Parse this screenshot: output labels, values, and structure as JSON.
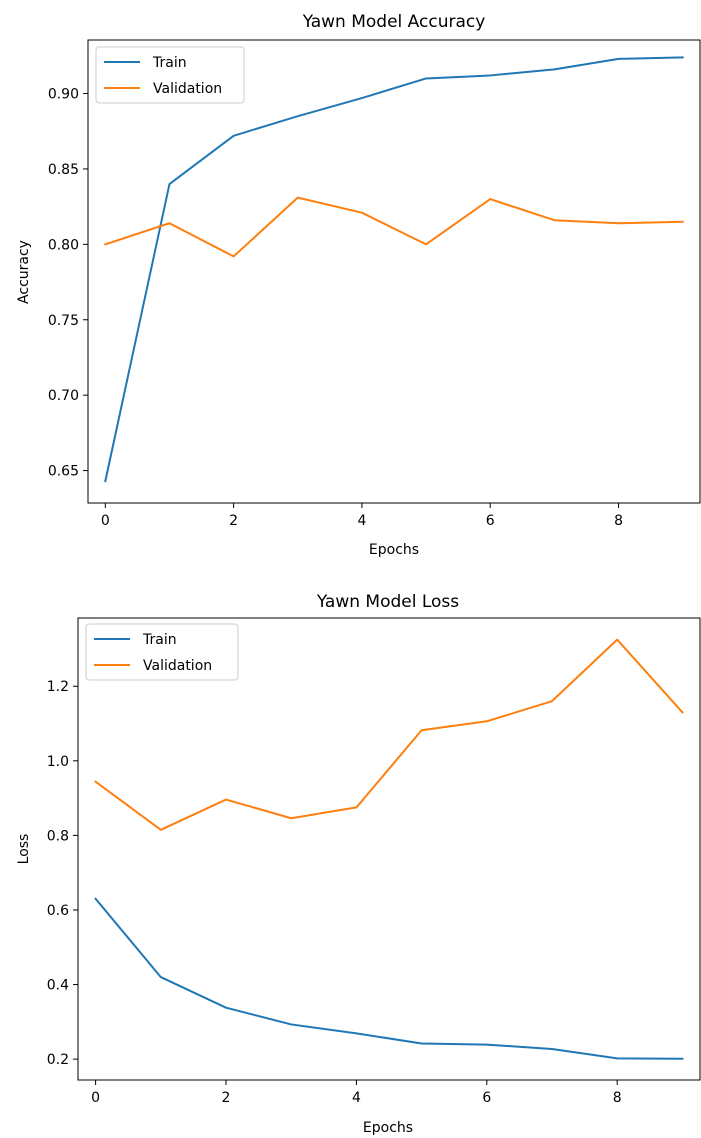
{
  "chart_data": [
    {
      "type": "line",
      "title": "Yawn Model Accuracy",
      "xlabel": "Epochs",
      "ylabel": "Accuracy",
      "x": [
        0,
        1,
        2,
        3,
        4,
        5,
        6,
        7,
        8,
        9
      ],
      "xlim": [
        -0.27,
        9.27
      ],
      "ylim": [
        0.6285,
        0.9355
      ],
      "xticks": [
        0,
        2,
        4,
        6,
        8
      ],
      "xtick_labels": [
        "0",
        "2",
        "4",
        "6",
        "8"
      ],
      "yticks": [
        0.65,
        0.7,
        0.75,
        0.8,
        0.85,
        0.9
      ],
      "ytick_labels": [
        "0.65",
        "0.70",
        "0.75",
        "0.80",
        "0.85",
        "0.90"
      ],
      "grid": false,
      "legend_position": "top-left",
      "series": [
        {
          "name": "Train",
          "color": "#1f77b4",
          "values": [
            0.643,
            0.84,
            0.872,
            0.885,
            0.897,
            0.91,
            0.912,
            0.916,
            0.923,
            0.924
          ]
        },
        {
          "name": "Validation",
          "color": "#ff7f0e",
          "values": [
            0.8,
            0.814,
            0.792,
            0.831,
            0.821,
            0.8,
            0.83,
            0.816,
            0.814,
            0.815
          ]
        }
      ]
    },
    {
      "type": "line",
      "title": "Yawn Model Loss",
      "xlabel": "Epochs",
      "ylabel": "Loss",
      "x": [
        0,
        1,
        2,
        3,
        4,
        5,
        6,
        7,
        8,
        9
      ],
      "xlim": [
        -0.27,
        9.27
      ],
      "ylim": [
        0.144,
        1.383
      ],
      "xticks": [
        0,
        2,
        4,
        6,
        8
      ],
      "xtick_labels": [
        "0",
        "2",
        "4",
        "6",
        "8"
      ],
      "yticks": [
        0.2,
        0.4,
        0.6,
        0.8,
        1.0,
        1.2
      ],
      "ytick_labels": [
        "0.2",
        "0.4",
        "0.6",
        "0.8",
        "1.0",
        "1.2"
      ],
      "grid": false,
      "legend_position": "top-left",
      "series": [
        {
          "name": "Train",
          "color": "#1f77b4",
          "values": [
            0.63,
            0.42,
            0.338,
            0.293,
            0.269,
            0.242,
            0.239,
            0.227,
            0.202,
            0.201
          ]
        },
        {
          "name": "Validation",
          "color": "#ff7f0e",
          "values": [
            0.944,
            0.815,
            0.896,
            0.846,
            0.875,
            1.082,
            1.106,
            1.16,
            1.325,
            1.13
          ]
        }
      ]
    }
  ]
}
